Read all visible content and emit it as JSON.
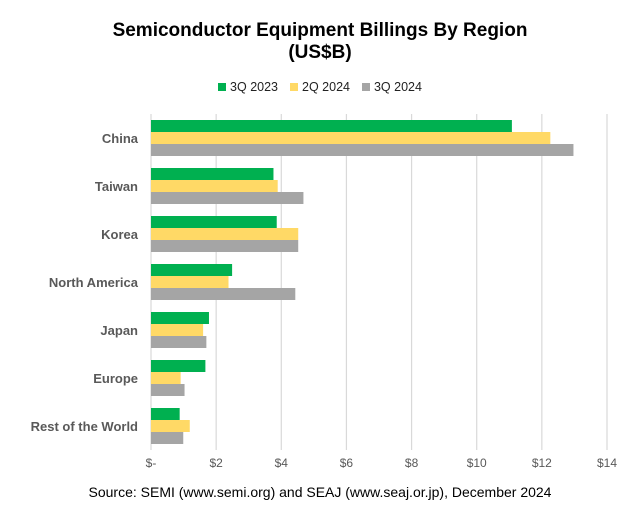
{
  "chart_data": {
    "type": "bar",
    "orientation": "horizontal",
    "title": "Semiconductor Equipment Billings By Region",
    "subtitle": "(US$B)",
    "categories": [
      "China",
      "Taiwan",
      "Korea",
      "North America",
      "Japan",
      "Europe",
      "Rest of the World"
    ],
    "series": [
      {
        "name": "3Q 2023",
        "color": "#00b050",
        "values": [
          11.08,
          3.76,
          3.86,
          2.49,
          1.78,
          1.67,
          0.88
        ]
      },
      {
        "name": "2Q 2024",
        "color": "#ffd966",
        "values": [
          12.26,
          3.89,
          4.52,
          2.38,
          1.6,
          0.91,
          1.19
        ]
      },
      {
        "name": "3Q 2024",
        "color": "#a5a5a5",
        "values": [
          12.97,
          4.68,
          4.52,
          4.43,
          1.7,
          1.03,
          0.99
        ]
      }
    ],
    "xlim": [
      0,
      14
    ],
    "xticks": [
      0,
      2,
      4,
      6,
      8,
      10,
      12,
      14
    ],
    "xtick_labels": [
      "$-",
      "$2",
      "$4",
      "$6",
      "$8",
      "$10",
      "$12",
      "$14"
    ],
    "grid": true,
    "legend_position": "top",
    "source": "Source: SEMI (www.semi.org) and SEAJ (www.seaj.or.jp), December 2024"
  }
}
